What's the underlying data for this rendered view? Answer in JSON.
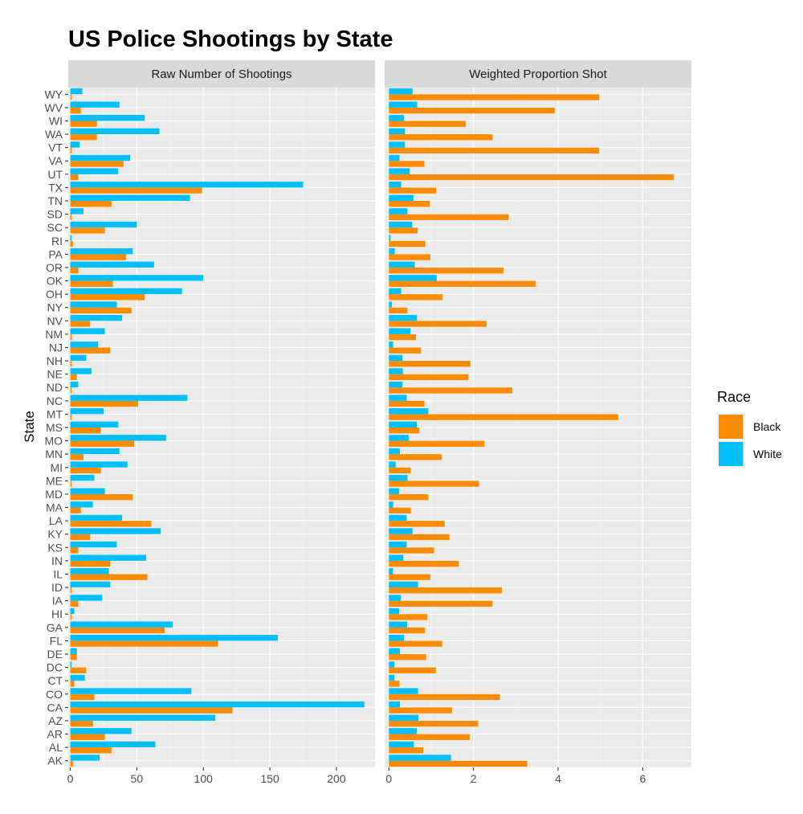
{
  "chart_data": {
    "type": "bar",
    "orientation": "horizontal",
    "title": "US Police Shootings by State",
    "ylabel": "State",
    "grid": true,
    "legend": {
      "title": "Race",
      "placement": "right",
      "entries": [
        {
          "name": "Black",
          "color": "#FF8C00"
        },
        {
          "name": "White",
          "color": "#00BFFF"
        }
      ]
    },
    "categories": [
      "WY",
      "WV",
      "WI",
      "WA",
      "VT",
      "VA",
      "UT",
      "TX",
      "TN",
      "SD",
      "SC",
      "RI",
      "PA",
      "OR",
      "OK",
      "OH",
      "NY",
      "NV",
      "NM",
      "NJ",
      "NH",
      "NE",
      "ND",
      "NC",
      "MT",
      "MS",
      "MO",
      "MN",
      "MI",
      "ME",
      "MD",
      "MA",
      "LA",
      "KY",
      "KS",
      "IN",
      "IL",
      "ID",
      "IA",
      "HI",
      "GA",
      "FL",
      "DE",
      "DC",
      "CT",
      "CO",
      "CA",
      "AZ",
      "AR",
      "AL",
      "AK"
    ],
    "panels": [
      {
        "title": "Raw Number of Shootings",
        "xlim": [
          -1.5,
          229
        ],
        "xticks": [
          0,
          50,
          100,
          150,
          200
        ],
        "series": [
          {
            "name": "Black",
            "values": [
              1,
              8,
              20,
              20,
              1,
              40,
              6,
              99,
              31,
              1,
              26,
              2,
              42,
              6,
              32,
              56,
              46,
              15,
              1,
              30,
              1,
              5,
              1,
              51,
              1,
              23,
              48,
              10,
              23,
              1,
              47,
              8,
              61,
              15,
              6,
              30,
              58,
              1,
              6,
              1,
              71,
              111,
              5,
              12,
              3,
              18,
              122,
              17,
              26,
              31,
              2
            ]
          },
          {
            "name": "White",
            "values": [
              9,
              37,
              56,
              67,
              7,
              45,
              36,
              175,
              90,
              10,
              50,
              1,
              47,
              63,
              100,
              84,
              35,
              39,
              26,
              21,
              12,
              16,
              6,
              88,
              25,
              36,
              72,
              37,
              43,
              18,
              26,
              17,
              39,
              68,
              35,
              57,
              29,
              30,
              24,
              3,
              77,
              156,
              5,
              1,
              11,
              91,
              221,
              109,
              46,
              64,
              22
            ]
          }
        ]
      },
      {
        "title": "Weighted Proportion Shot",
        "xlim": [
          -0.1,
          7.15
        ],
        "xticks": [
          0,
          2,
          4,
          6
        ],
        "series": [
          {
            "name": "Black",
            "values": [
              4.97,
              3.92,
              1.82,
              2.45,
              4.97,
              0.84,
              6.73,
              1.12,
              0.97,
              2.83,
              0.68,
              0.86,
              0.98,
              2.71,
              3.47,
              1.27,
              0.44,
              2.31,
              0.64,
              0.76,
              1.93,
              1.88,
              2.92,
              0.84,
              5.42,
              0.72,
              2.26,
              1.25,
              0.52,
              2.13,
              0.93,
              0.52,
              1.32,
              1.43,
              1.07,
              1.65,
              0.98,
              2.67,
              2.45,
              0.91,
              0.85,
              1.26,
              0.88,
              1.11,
              0.25,
              2.62,
              1.49,
              2.11,
              1.91,
              0.81,
              3.27
            ]
          },
          {
            "name": "White",
            "values": [
              0.56,
              0.67,
              0.36,
              0.38,
              0.38,
              0.25,
              0.49,
              0.29,
              0.58,
              0.44,
              0.55,
              0.04,
              0.14,
              0.61,
              1.13,
              0.29,
              0.07,
              0.66,
              0.51,
              0.1,
              0.32,
              0.33,
              0.32,
              0.42,
              0.93,
              0.66,
              0.47,
              0.26,
              0.16,
              0.44,
              0.24,
              0.1,
              0.42,
              0.56,
              0.42,
              0.34,
              0.1,
              0.69,
              0.28,
              0.24,
              0.43,
              0.36,
              0.26,
              0.13,
              0.13,
              0.69,
              0.26,
              0.7,
              0.66,
              0.59,
              1.47
            ]
          }
        ]
      }
    ]
  }
}
